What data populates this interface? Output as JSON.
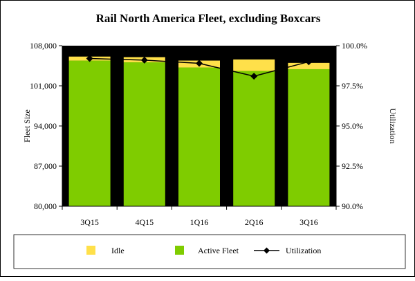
{
  "chart_data": {
    "type": "bar",
    "title": "Rail North America Fleet, excluding Boxcars",
    "categories": [
      "3Q15",
      "4Q15",
      "1Q16",
      "2Q16",
      "3Q16"
    ],
    "ylabel": "Fleet Size",
    "y2label": "Utilization",
    "ylim": [
      80000,
      108000
    ],
    "y_ticks": [
      "80,000",
      "87,000",
      "94,000",
      "101,000",
      "108,000"
    ],
    "y2lim": [
      90.0,
      100.0
    ],
    "y2_ticks": [
      "90.0%",
      "92.5%",
      "95.0%",
      "97.5%",
      "100.0%"
    ],
    "stacked": true,
    "series": [
      {
        "name": "Active Fleet",
        "kind": "bar",
        "color": "#7fcc00",
        "values": [
          105400,
          105100,
          104200,
          103600,
          103900
        ]
      },
      {
        "name": "Idle",
        "kind": "bar",
        "color": "#ffe04a",
        "values": [
          700,
          900,
          1200,
          2000,
          1100
        ]
      },
      {
        "name": "Utilization",
        "kind": "line",
        "axis": "right",
        "color": "#000000",
        "values": [
          99.2,
          99.1,
          98.9,
          98.1,
          99.0
        ]
      }
    ],
    "legend": {
      "position": "bottom",
      "items": [
        {
          "label": "Idle",
          "color": "#ffe04a"
        },
        {
          "label": "Active Fleet",
          "color": "#7fcc00"
        },
        {
          "label": "Utilization",
          "color": "#000000"
        }
      ]
    }
  }
}
